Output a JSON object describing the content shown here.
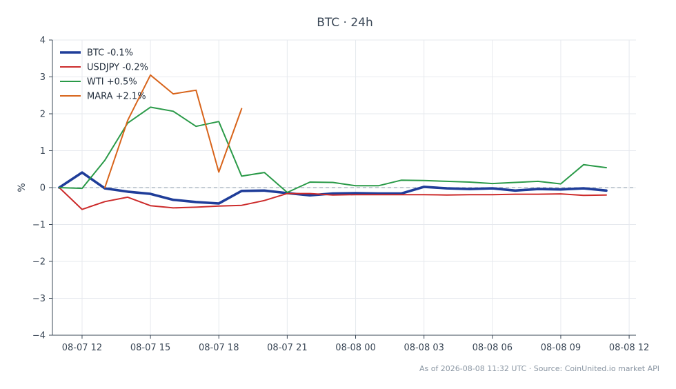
{
  "chart_data": {
    "type": "line",
    "title": "BTC · 24h",
    "ylabel": "%",
    "xlabel": "",
    "ylim": [
      -4,
      4
    ],
    "xlim": [
      "08-07 10:42",
      "08-08 12:18"
    ],
    "yticks": [
      -4,
      -3,
      -2,
      -1,
      0,
      1,
      2,
      3,
      4
    ],
    "ytick_labels": [
      "−4",
      "−3",
      "−2",
      "−1",
      "0",
      "1",
      "2",
      "3",
      "4"
    ],
    "xticks": [
      "08-07 12:00",
      "08-07 15:00",
      "08-07 18:00",
      "08-07 21:00",
      "08-08 00:00",
      "08-08 03:00",
      "08-08 06:00",
      "08-08 09:00",
      "08-08 12:00"
    ],
    "xtick_labels": [
      "08-07 12",
      "08-07 15",
      "08-07 18",
      "08-07 21",
      "08-08 00",
      "08-08 03",
      "08-08 06",
      "08-08 09",
      "08-08 12"
    ],
    "grid": true,
    "zero_line": true,
    "legend_position": "top-left",
    "series": [
      {
        "name": "BTC -0.1%",
        "color": "#1f3d99",
        "line_width": "thick",
        "x": [
          "08-07 11:00",
          "08-07 12:00",
          "08-07 13:00",
          "08-07 14:00",
          "08-07 15:00",
          "08-07 16:00",
          "08-07 17:00",
          "08-07 18:00",
          "08-07 19:00",
          "08-07 20:00",
          "08-07 21:00",
          "08-07 22:00",
          "08-07 23:00",
          "08-08 00:00",
          "08-08 01:00",
          "08-08 02:00",
          "08-08 03:00",
          "08-08 04:00",
          "08-08 05:00",
          "08-08 06:00",
          "08-08 07:00",
          "08-08 08:00",
          "08-08 09:00",
          "08-08 10:00",
          "08-08 11:00"
        ],
        "y": [
          0.0,
          0.41,
          -0.02,
          -0.11,
          -0.17,
          -0.33,
          -0.39,
          -0.43,
          -0.09,
          -0.08,
          -0.15,
          -0.21,
          -0.16,
          -0.15,
          -0.16,
          -0.16,
          0.02,
          -0.02,
          -0.04,
          -0.02,
          -0.08,
          -0.04,
          -0.05,
          -0.02,
          -0.08
        ]
      },
      {
        "name": "USDJPY -0.2%",
        "color": "#cc2b2b",
        "line_width": "normal",
        "x": [
          "08-07 11:00",
          "08-07 12:00",
          "08-07 13:00",
          "08-07 14:00",
          "08-07 15:00",
          "08-07 16:00",
          "08-07 17:00",
          "08-07 18:00",
          "08-07 19:00",
          "08-07 20:00",
          "08-07 21:00",
          "08-07 22:00",
          "08-07 23:00",
          "08-08 00:00",
          "08-08 01:00",
          "08-08 02:00",
          "08-08 03:00",
          "08-08 04:00",
          "08-08 05:00",
          "08-08 06:00",
          "08-08 07:00",
          "08-08 08:00",
          "08-08 09:00",
          "08-08 10:00",
          "08-08 11:00"
        ],
        "y": [
          0.0,
          -0.59,
          -0.38,
          -0.26,
          -0.49,
          -0.55,
          -0.53,
          -0.5,
          -0.48,
          -0.35,
          -0.16,
          -0.16,
          -0.2,
          -0.19,
          -0.19,
          -0.19,
          -0.19,
          -0.2,
          -0.19,
          -0.19,
          -0.18,
          -0.18,
          -0.17,
          -0.21,
          -0.2
        ]
      },
      {
        "name": "WTI +0.5%",
        "color": "#2a9a48",
        "line_width": "normal",
        "x": [
          "08-07 11:00",
          "08-07 12:00",
          "08-07 13:00",
          "08-07 14:00",
          "08-07 15:00",
          "08-07 16:00",
          "08-07 17:00",
          "08-07 18:00",
          "08-07 19:00",
          "08-07 20:00",
          "08-07 21:00",
          "08-07 22:00",
          "08-07 23:00",
          "08-08 00:00",
          "08-08 01:00",
          "08-08 02:00",
          "08-08 03:00",
          "08-08 04:00",
          "08-08 05:00",
          "08-08 06:00",
          "08-08 07:00",
          "08-08 08:00",
          "08-08 09:00",
          "08-08 10:00",
          "08-08 11:00"
        ],
        "y": [
          0.0,
          -0.02,
          0.74,
          1.75,
          2.18,
          2.07,
          1.66,
          1.79,
          0.31,
          0.41,
          -0.13,
          0.15,
          0.14,
          0.05,
          0.05,
          0.2,
          0.19,
          0.17,
          0.15,
          0.11,
          0.14,
          0.17,
          0.1,
          0.62,
          0.54
        ]
      },
      {
        "name": "MARA +2.1%",
        "color": "#d8641b",
        "line_width": "normal",
        "x": [
          "08-07 13:00",
          "08-07 14:00",
          "08-07 15:00",
          "08-07 16:00",
          "08-07 17:00",
          "08-07 18:00",
          "08-07 19:00"
        ],
        "y": [
          0.0,
          1.82,
          3.05,
          2.54,
          2.64,
          0.42,
          2.14
        ]
      }
    ]
  },
  "footer": {
    "source_text": "As of 2026-08-08 11:32 UTC · Source: CoinUnited.io market API"
  }
}
